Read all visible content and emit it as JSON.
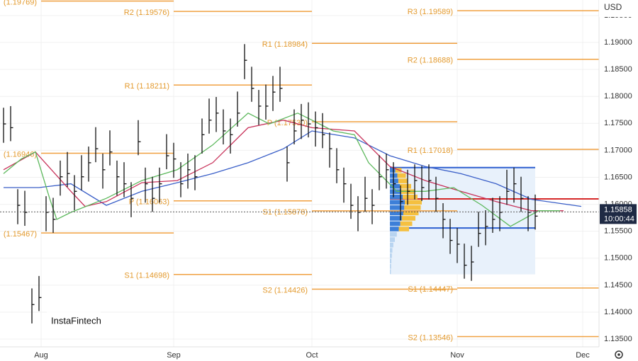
{
  "chart_data": {
    "type": "ohlc",
    "currency": "USD",
    "watermark": "InstaFintech",
    "grid": true,
    "xlim": [
      -0.5,
      84
    ],
    "ylim": [
      1.13356,
      1.19788
    ],
    "xticks": [
      {
        "value": 5.3,
        "label": "Aug"
      },
      {
        "value": 24,
        "label": "Sep"
      },
      {
        "value": 43.5,
        "label": "Oct"
      },
      {
        "value": 64,
        "label": "Nov"
      },
      {
        "value": 81.7,
        "label": "Dec"
      }
    ],
    "yticks": [
      {
        "value": 1.135,
        "label": "1.13500"
      },
      {
        "value": 1.14,
        "label": "1.14000"
      },
      {
        "value": 1.145,
        "label": "1.14500"
      },
      {
        "value": 1.15,
        "label": "1.15000"
      },
      {
        "value": 1.155,
        "label": "1.15500"
      },
      {
        "value": 1.16,
        "label": "1.16000"
      },
      {
        "value": 1.165,
        "label": "1.16500"
      },
      {
        "value": 1.17,
        "label": "1.17000"
      },
      {
        "value": 1.175,
        "label": "1.17500"
      },
      {
        "value": 1.18,
        "label": "1.18000"
      },
      {
        "value": 1.185,
        "label": "1.18500"
      },
      {
        "value": 1.19,
        "label": "1.19000"
      },
      {
        "value": 1.195,
        "label": "1.19500"
      }
    ],
    "bar_color": "#111111",
    "high": [
      1.1779,
      1.1782,
      1.1628,
      1.1625,
      1.1444,
      1.1467,
      1.1615,
      1.1612,
      1.1681,
      1.1697,
      1.1654,
      1.1691,
      1.1707,
      1.1743,
      1.1694,
      1.1737,
      1.1681,
      1.1678,
      1.1641,
      1.1756,
      1.1668,
      1.1651,
      1.1668,
      1.173,
      1.1714,
      1.1678,
      1.1694,
      1.1691,
      1.1759,
      1.1796,
      1.1799,
      1.1776,
      1.1759,
      1.1809,
      1.1897,
      1.1855,
      1.1812,
      1.1822,
      1.1838,
      1.1855,
      1.1707,
      1.1776,
      1.1786,
      1.1789,
      1.1772,
      1.1769,
      1.1733,
      1.1704,
      1.1668,
      1.1638,
      1.1615,
      1.1651,
      1.1628,
      1.1691,
      1.1694,
      1.1678,
      1.1635,
      1.1664,
      1.1674,
      1.1671,
      1.1674,
      1.1651,
      1.1602,
      1.1573,
      1.1556,
      1.1527,
      1.1523,
      1.1586,
      1.1589,
      1.1612,
      1.1615,
      1.1664,
      1.1668,
      1.1651,
      1.1615,
      1.1618
    ],
    "low": [
      1.1714,
      1.1717,
      1.1563,
      1.156,
      1.1379,
      1.1402,
      1.155,
      1.1547,
      1.1616,
      1.1632,
      1.1589,
      1.1626,
      1.1642,
      1.1678,
      1.1629,
      1.1672,
      1.1616,
      1.1613,
      1.1576,
      1.1691,
      1.1603,
      1.1586,
      1.1603,
      1.1665,
      1.1649,
      1.1613,
      1.1629,
      1.1626,
      1.1694,
      1.1731,
      1.1734,
      1.1711,
      1.1694,
      1.1744,
      1.1832,
      1.179,
      1.1747,
      1.1757,
      1.1773,
      1.179,
      1.1642,
      1.1711,
      1.1721,
      1.1724,
      1.1707,
      1.1704,
      1.1668,
      1.1639,
      1.1603,
      1.1573,
      1.155,
      1.1586,
      1.1563,
      1.1626,
      1.1629,
      1.1613,
      1.157,
      1.1599,
      1.1609,
      1.1606,
      1.1609,
      1.1586,
      1.1537,
      1.1508,
      1.1491,
      1.1462,
      1.1458,
      1.1521,
      1.1524,
      1.1547,
      1.155,
      1.1599,
      1.1603,
      1.1586,
      1.155,
      1.1553
    ],
    "close": [
      1.1749,
      1.1742,
      1.1598,
      1.1585,
      1.1414,
      1.1427,
      1.1585,
      1.1572,
      1.1651,
      1.1657,
      1.1624,
      1.1651,
      1.1677,
      1.1703,
      1.1664,
      1.1697,
      1.1651,
      1.1638,
      1.1611,
      1.1716,
      1.1638,
      1.1611,
      1.1638,
      1.169,
      1.1684,
      1.1638,
      1.1664,
      1.1651,
      1.1729,
      1.1756,
      1.1769,
      1.1736,
      1.1729,
      1.1769,
      1.1867,
      1.1815,
      1.1782,
      1.1782,
      1.1808,
      1.1815,
      1.1677,
      1.1736,
      1.1756,
      1.1749,
      1.1742,
      1.1729,
      1.1703,
      1.1664,
      1.1638,
      1.1598,
      1.1585,
      1.1611,
      1.1598,
      1.1651,
      1.1664,
      1.1638,
      1.1605,
      1.1624,
      1.1644,
      1.1631,
      1.1644,
      1.1611,
      1.1572,
      1.1533,
      1.1526,
      1.1487,
      1.1493,
      1.1546,
      1.1559,
      1.1572,
      1.1585,
      1.1624,
      1.1638,
      1.1611,
      1.1585,
      1.1578
    ],
    "series": [
      {
        "color": "#3a5fc8",
        "x": [
          0,
          5,
          9.5,
          14.5,
          19.5,
          24.5,
          29.5,
          34.5,
          39.5,
          43.5,
          49.5,
          54.5,
          59.5,
          64.5,
          69.5,
          74.5,
          81.5
        ],
        "values": [
          1.1631,
          1.1631,
          1.1638,
          1.1598,
          1.1624,
          1.164,
          1.1657,
          1.1677,
          1.1703,
          1.1736,
          1.1723,
          1.169,
          1.167,
          1.1657,
          1.1638,
          1.1609,
          1.1596
        ]
      },
      {
        "color": "#c8325a",
        "x": [
          0,
          4.5,
          9.5,
          11.5,
          14.5,
          19.5,
          24.5,
          29.5,
          34.5,
          39.5,
          43.5,
          49.5,
          54.5,
          59.5,
          64.5,
          69.5,
          74.5,
          79
        ],
        "values": [
          1.1664,
          1.1697,
          1.1624,
          1.1596,
          1.1605,
          1.164,
          1.1644,
          1.1677,
          1.1742,
          1.1756,
          1.1742,
          1.1736,
          1.167,
          1.1644,
          1.1624,
          1.1605,
          1.1588,
          1.1588
        ]
      },
      {
        "color": "#5cb85c",
        "x": [
          0,
          2.5,
          4.5,
          6.5,
          7.5,
          9.5,
          14.5,
          19.5,
          24.5,
          29.5,
          34.5,
          37.5,
          41.5,
          43.5,
          46.5,
          49.5,
          51.5,
          55.5,
          59.5,
          63.5,
          67.5,
          71.5,
          75.5,
          78.5
        ],
        "values": [
          1.1657,
          1.1684,
          1.1697,
          1.1611,
          1.1572,
          1.1585,
          1.1611,
          1.1644,
          1.1664,
          1.171,
          1.1769,
          1.1749,
          1.1769,
          1.1756,
          1.1736,
          1.1729,
          1.1677,
          1.1624,
          1.1624,
          1.1631,
          1.1598,
          1.1559,
          1.1588,
          1.1588
        ]
      }
    ],
    "level_color": "#f0a040",
    "levels": [
      {
        "label": "(1.19769)",
        "value": 1.19769,
        "from": 5.3,
        "to": 24
      },
      {
        "label": "(1.16946)",
        "value": 1.16946,
        "from": 5.3,
        "to": 24
      },
      {
        "label": "(1.15467)",
        "value": 1.15467,
        "from": 5.3,
        "to": 24
      },
      {
        "label": "R2 (1.19576)",
        "value": 1.19576,
        "from": 24,
        "to": 43.5
      },
      {
        "label": "R1 (1.18211)",
        "value": 1.18211,
        "from": 24,
        "to": 43.5
      },
      {
        "label": "P (1.16063)",
        "value": 1.16063,
        "from": 24,
        "to": 43.5
      },
      {
        "label": "S1 (1.14698)",
        "value": 1.14698,
        "from": 24,
        "to": 43.5
      },
      {
        "label": "R1 (1.18984)",
        "value": 1.18984,
        "from": 43.5,
        "to": 64
      },
      {
        "label": "P (1.17530)",
        "value": 1.1753,
        "from": 43.5,
        "to": 64
      },
      {
        "label": "S1 (1.15878)",
        "value": 1.15878,
        "from": 43.5,
        "to": 64
      },
      {
        "label": "S2 (1.14426)",
        "value": 1.14426,
        "from": 43.5,
        "to": 64
      },
      {
        "label": "R3 (1.19589)",
        "value": 1.19589,
        "from": 64,
        "to": 84
      },
      {
        "label": "R2 (1.18688)",
        "value": 1.18688,
        "from": 64,
        "to": 84
      },
      {
        "label": "R1 (1.17018)",
        "value": 1.17018,
        "from": 64,
        "to": 84
      },
      {
        "label": "S1 (1.14447)",
        "value": 1.14447,
        "from": 64,
        "to": 84
      },
      {
        "label": "S2 (1.13546)",
        "value": 1.13546,
        "from": 64,
        "to": 84
      }
    ],
    "value_area": {
      "from": 54.5,
      "to": 75,
      "high": 1.1668,
      "low": 1.1556,
      "bottom": 1.147,
      "poc": 1.161
    },
    "last_price": 1.15858,
    "countdown": "10:00:44"
  }
}
